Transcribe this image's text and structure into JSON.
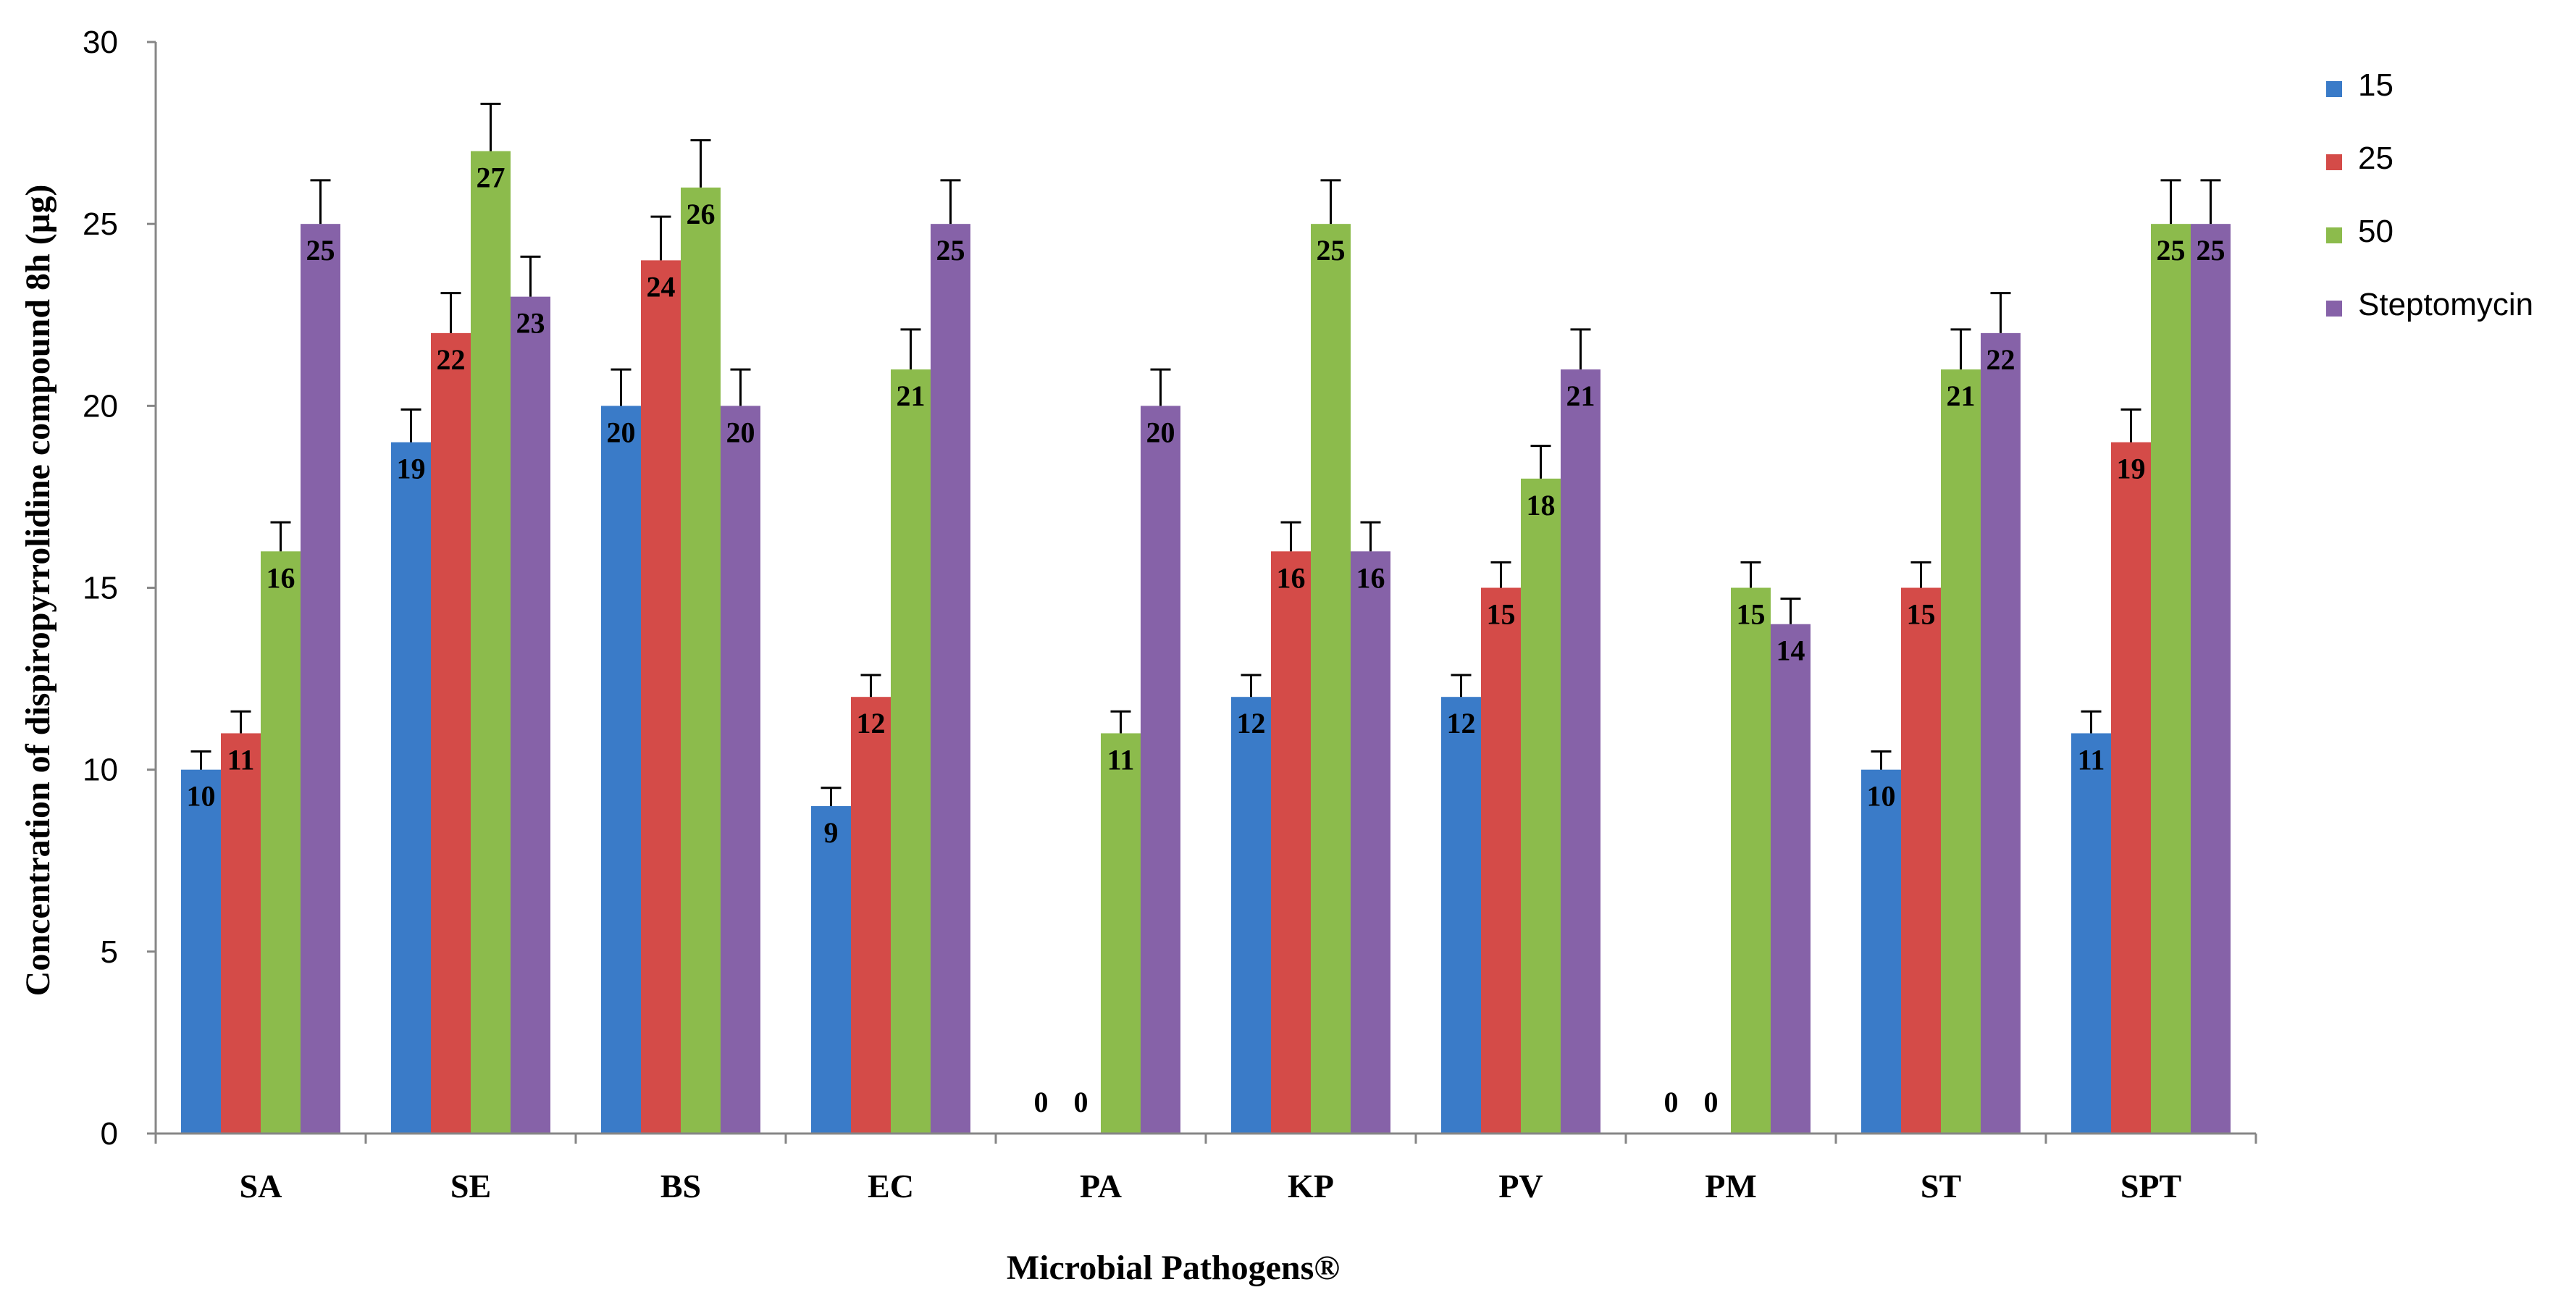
{
  "chart_data": {
    "type": "bar",
    "title": "",
    "xlabel": "Microbial Pathogens®",
    "ylabel": "Concentration of dispiropyrrolidine compound 8h (µg)",
    "ylim": [
      0,
      30
    ],
    "yticks": [
      0,
      5,
      10,
      15,
      20,
      25,
      30
    ],
    "categories": [
      "SA",
      "SE",
      "BS",
      "EC",
      "PA",
      "KP",
      "PV",
      "PM",
      "ST",
      "SPT"
    ],
    "series": [
      {
        "name": "15",
        "color": "#3A7BC8",
        "values": [
          10,
          19,
          20,
          9,
          0,
          12,
          12,
          0,
          10,
          11
        ],
        "errors": [
          0.5,
          0.9,
          1.0,
          0.5,
          0,
          0.6,
          0.6,
          0,
          0.5,
          0.6
        ],
        "labels": [
          "10",
          "19",
          "20",
          "9",
          "0",
          "12",
          "12",
          "0",
          "10",
          "11"
        ]
      },
      {
        "name": "25",
        "color": "#D44B48",
        "values": [
          11,
          22,
          24,
          12,
          0,
          16,
          15,
          0,
          15,
          19
        ],
        "errors": [
          0.6,
          1.1,
          1.2,
          0.6,
          0,
          0.8,
          0.7,
          0,
          0.7,
          0.9
        ],
        "labels": [
          "11",
          "22",
          "24",
          "12",
          "0",
          "16",
          "15",
          "0",
          "15",
          "19"
        ]
      },
      {
        "name": "50",
        "color": "#8CBB4C",
        "values": [
          16,
          27,
          26,
          21,
          11,
          25,
          18,
          15,
          21,
          25
        ],
        "errors": [
          0.8,
          1.3,
          1.3,
          1.1,
          0.6,
          1.2,
          0.9,
          0.7,
          1.1,
          1.2
        ],
        "labels": [
          "16",
          "27",
          "26",
          "21",
          "11",
          "25",
          "18",
          "15",
          "21",
          "25"
        ]
      },
      {
        "name": "Steptomycin",
        "color": "#8662A8",
        "values": [
          25,
          23,
          20,
          25,
          20,
          16,
          21,
          14,
          22,
          25
        ],
        "errors": [
          1.2,
          1.1,
          1.0,
          1.2,
          1.0,
          0.8,
          1.1,
          0.7,
          1.1,
          1.2
        ],
        "labels": [
          "25",
          "23",
          "20",
          "25",
          "20",
          "16",
          "21",
          "14",
          "22",
          "25"
        ]
      }
    ],
    "legend": "right",
    "grid": false
  }
}
